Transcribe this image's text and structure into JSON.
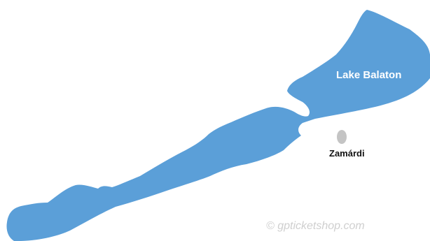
{
  "map": {
    "lake_name": "Lake Balaton",
    "town_name": "Zamárdi",
    "watermark": "© gpticketshop.com",
    "colors": {
      "lake": "#5b9fd8",
      "town_marker": "#c4c4c4",
      "background": "#ffffff"
    }
  }
}
